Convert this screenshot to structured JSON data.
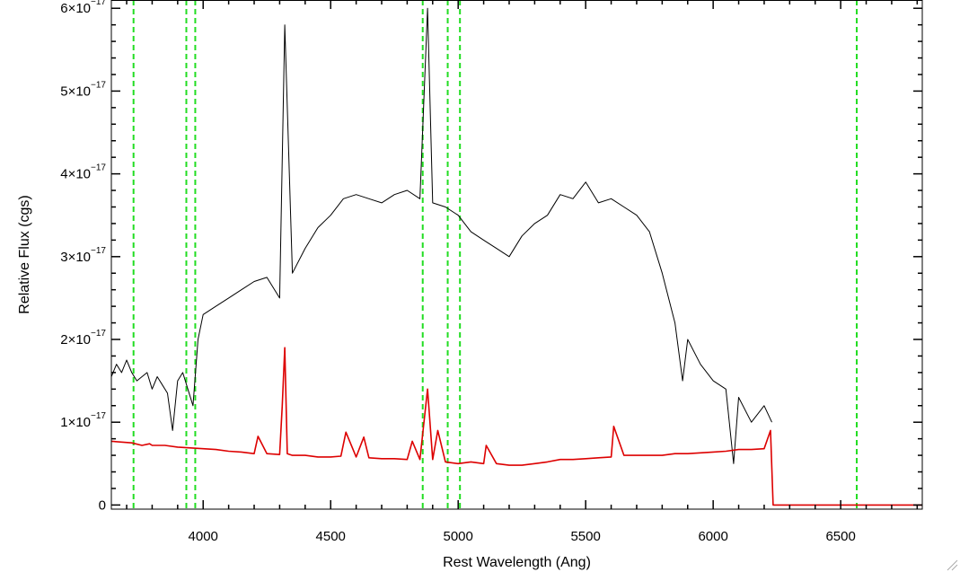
{
  "chart_data": {
    "type": "line",
    "title": "",
    "xlabel": "Rest Wavelength (Ang)",
    "ylabel": "Relative Flux (cgs)",
    "xlim": [
      3640,
      6820
    ],
    "ylim": [
      -5e-19,
      6.1e-17
    ],
    "x_ticks": [
      4000,
      4500,
      5000,
      5500,
      6000,
      6500
    ],
    "x_tick_labels": [
      "4000",
      "4500",
      "5000",
      "5500",
      "6000",
      "6500"
    ],
    "y_ticks": [
      0,
      1e-17,
      2e-17,
      3e-17,
      4e-17,
      5e-17,
      6e-17
    ],
    "y_tick_labels": [
      {
        "mantissa": "0",
        "power": ""
      },
      {
        "mantissa": "1×10",
        "power": "−17"
      },
      {
        "mantissa": "2×10",
        "power": "−17"
      },
      {
        "mantissa": "3×10",
        "power": "−17"
      },
      {
        "mantissa": "4×10",
        "power": "−17"
      },
      {
        "mantissa": "5×10",
        "power": "−17"
      },
      {
        "mantissa": "6×10",
        "power": "−17"
      }
    ],
    "grid": false,
    "reference_lines": {
      "style": "dashed",
      "color": "#22dd22",
      "x": [
        3727,
        3934,
        3969,
        4861,
        4959,
        5007,
        6563
      ]
    },
    "series": [
      {
        "color": "#000000",
        "x": [
          3640,
          3660,
          3680,
          3700,
          3720,
          3740,
          3760,
          3780,
          3800,
          3820,
          3840,
          3860,
          3880,
          3900,
          3920,
          3940,
          3960,
          3980,
          4000,
          4050,
          4100,
          4150,
          4200,
          4250,
          4300,
          4320,
          4350,
          4400,
          4450,
          4500,
          4550,
          4600,
          4650,
          4700,
          4750,
          4800,
          4850,
          4880,
          4900,
          4950,
          5000,
          5050,
          5100,
          5150,
          5200,
          5250,
          5300,
          5350,
          5400,
          5450,
          5500,
          5550,
          5600,
          5650,
          5700,
          5750,
          5800,
          5850,
          5880,
          5900,
          5950,
          6000,
          6050,
          6080,
          6100,
          6150,
          6200,
          6230
        ],
        "y": [
          1.55e-17,
          1.7e-17,
          1.6e-17,
          1.75e-17,
          1.6e-17,
          1.5e-17,
          1.55e-17,
          1.6e-17,
          1.4e-17,
          1.55e-17,
          1.45e-17,
          1.35e-17,
          9e-18,
          1.5e-17,
          1.6e-17,
          1.4e-17,
          1.2e-17,
          2e-17,
          2.3e-17,
          2.4e-17,
          2.5e-17,
          2.6e-17,
          2.7e-17,
          2.75e-17,
          2.5e-17,
          5.8e-17,
          2.8e-17,
          3.1e-17,
          3.35e-17,
          3.5e-17,
          3.7e-17,
          3.75e-17,
          3.7e-17,
          3.65e-17,
          3.75e-17,
          3.8e-17,
          3.7e-17,
          6e-17,
          3.65e-17,
          3.6e-17,
          3.5e-17,
          3.3e-17,
          3.2e-17,
          3.1e-17,
          3e-17,
          3.25e-17,
          3.4e-17,
          3.5e-17,
          3.75e-17,
          3.7e-17,
          3.9e-17,
          3.65e-17,
          3.7e-17,
          3.6e-17,
          3.5e-17,
          3.3e-17,
          2.8e-17,
          2.2e-17,
          1.5e-17,
          2e-17,
          1.7e-17,
          1.5e-17,
          1.4e-17,
          5e-18,
          1.3e-17,
          1e-17,
          1.2e-17,
          1e-17
        ]
      },
      {
        "color": "#dd0000",
        "x": [
          3640,
          3720,
          3760,
          3790,
          3800,
          3850,
          3900,
          3950,
          4000,
          4050,
          4100,
          4150,
          4200,
          4215,
          4250,
          4300,
          4310,
          4320,
          4330,
          4350,
          4400,
          4450,
          4500,
          4540,
          4560,
          4600,
          4630,
          4650,
          4700,
          4750,
          4800,
          4820,
          4850,
          4880,
          4900,
          4920,
          4950,
          5000,
          5050,
          5100,
          5110,
          5150,
          5200,
          5250,
          5300,
          5350,
          5400,
          5450,
          5500,
          5550,
          5600,
          5610,
          5650,
          5700,
          5750,
          5800,
          5850,
          5900,
          5950,
          6000,
          6050,
          6100,
          6150,
          6200,
          6225,
          6235,
          6300,
          6820
        ],
        "y": [
          7.7e-18,
          7.5e-18,
          7.2e-18,
          7.4e-18,
          7.2e-18,
          7.2e-18,
          7e-18,
          6.9e-18,
          6.8e-18,
          6.7e-18,
          6.5e-18,
          6.4e-18,
          6.2e-18,
          8.3e-18,
          6.2e-18,
          6.1e-18,
          1.2e-17,
          1.9e-17,
          6.2e-18,
          6e-18,
          6e-18,
          5.8e-18,
          5.8e-18,
          5.9e-18,
          8.8e-18,
          5.8e-18,
          8.2e-18,
          5.7e-18,
          5.6e-18,
          5.6e-18,
          5.5e-18,
          7.7e-18,
          5.5e-18,
          1.4e-17,
          5.5e-18,
          9e-18,
          5.2e-18,
          5e-18,
          5.2e-18,
          5e-18,
          7.2e-18,
          5e-18,
          4.8e-18,
          4.8e-18,
          5e-18,
          5.2e-18,
          5.5e-18,
          5.5e-18,
          5.6e-18,
          5.7e-18,
          5.8e-18,
          9.5e-18,
          6e-18,
          6e-18,
          6e-18,
          6e-18,
          6.2e-18,
          6.2e-18,
          6.3e-18,
          6.4e-18,
          6.5e-18,
          6.7e-18,
          6.7e-18,
          6.8e-18,
          9e-18,
          0.0,
          0.0,
          0.0
        ]
      }
    ]
  }
}
